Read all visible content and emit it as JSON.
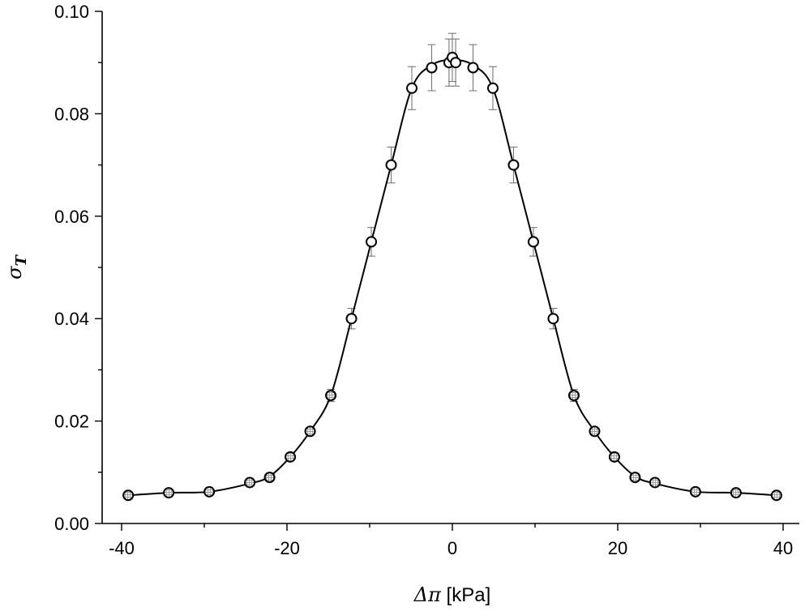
{
  "chart_data": {
    "type": "scatter",
    "title": "",
    "xlabel": "Δπ [kPa]",
    "xlabel_parts": {
      "symbol": "Δπ",
      "unit": " [kPa]"
    },
    "ylabel": "σT",
    "ylabel_parts": {
      "symbol": "σ",
      "subscript": "T"
    },
    "xlim": [
      -42,
      42
    ],
    "ylim": [
      0,
      0.1
    ],
    "xticks": [
      -40,
      -20,
      0,
      20,
      40
    ],
    "yticks": [
      0.0,
      0.02,
      0.04,
      0.06,
      0.08,
      0.1
    ],
    "xtick_labels": [
      "-40",
      "-20",
      "0",
      "20",
      "40"
    ],
    "ytick_labels": [
      "0.00",
      "0.02",
      "0.04",
      "0.06",
      "0.08",
      "0.10"
    ],
    "grid": false,
    "legend": "none",
    "colors": {
      "marker_edge": "#000000",
      "marker_fill": "#ffffff",
      "hatch_fill": "#bdbdbd",
      "errorbar": "#777777",
      "curve": "#000000"
    },
    "series": [
      {
        "marker": "open-circle",
        "x": [
          -12.2,
          -9.8,
          -7.4,
          -4.9,
          -2.5,
          -0.4,
          0.0,
          0.4,
          2.5,
          4.9,
          7.4,
          9.8,
          12.2
        ],
        "y": [
          0.04,
          0.055,
          0.07,
          0.085,
          0.089,
          0.09,
          0.091,
          0.09,
          0.089,
          0.085,
          0.07,
          0.055,
          0.04
        ],
        "error": [
          0.002,
          0.0028,
          0.0035,
          0.0042,
          0.0045,
          0.0046,
          0.0047,
          0.0046,
          0.0045,
          0.0042,
          0.0035,
          0.0028,
          0.002
        ]
      },
      {
        "marker": "hatched-circle",
        "x": [
          -39.2,
          -34.3,
          -29.4,
          -24.5,
          -22.1,
          -19.6,
          -17.2,
          -14.7,
          14.7,
          17.2,
          19.6,
          22.1,
          24.5,
          29.4,
          34.3,
          39.2
        ],
        "y": [
          0.0055,
          0.006,
          0.0062,
          0.008,
          0.009,
          0.013,
          0.018,
          0.025,
          0.025,
          0.018,
          0.013,
          0.009,
          0.008,
          0.0062,
          0.006,
          0.0055
        ],
        "error": [
          0,
          0,
          0,
          0,
          0,
          0,
          0,
          0.0012,
          0.0012,
          0,
          0,
          0,
          0,
          0,
          0,
          0
        ]
      }
    ],
    "fit_curve": {
      "x": [
        -39.2,
        -34.3,
        -29.4,
        -24.5,
        -22.1,
        -19.6,
        -17.2,
        -14.7,
        -12.2,
        -9.8,
        -7.4,
        -4.9,
        -2.5,
        0,
        2.5,
        4.9,
        7.4,
        9.8,
        12.2,
        14.7,
        17.2,
        19.6,
        22.1,
        24.5,
        29.4,
        34.3,
        39.2
      ],
      "y": [
        0.0055,
        0.006,
        0.0062,
        0.0078,
        0.0092,
        0.013,
        0.018,
        0.025,
        0.04,
        0.055,
        0.07,
        0.085,
        0.0895,
        0.0905,
        0.0895,
        0.085,
        0.07,
        0.055,
        0.04,
        0.025,
        0.018,
        0.013,
        0.0092,
        0.0078,
        0.0062,
        0.006,
        0.0055
      ]
    }
  }
}
